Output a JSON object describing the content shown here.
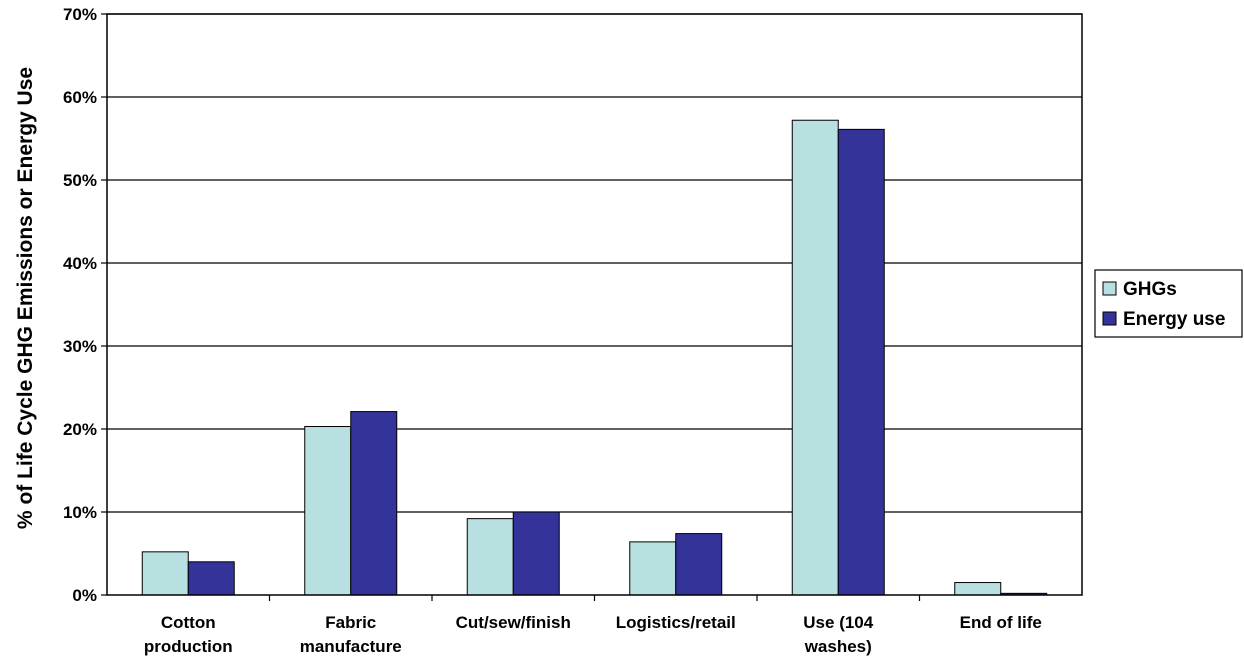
{
  "chart_data": {
    "type": "bar",
    "ylabel": "% of Life Cycle GHG Emissions or Energy Use",
    "xlabel": "",
    "ylim": [
      0,
      70
    ],
    "y_ticks": [
      "0%",
      "10%",
      "20%",
      "30%",
      "40%",
      "50%",
      "60%",
      "70%"
    ],
    "y_tick_values": [
      0,
      10,
      20,
      30,
      40,
      50,
      60,
      70
    ],
    "grid": true,
    "legend_position": "right",
    "categories": [
      [
        "Cotton",
        "production"
      ],
      [
        "Fabric",
        "manufacture"
      ],
      [
        "Cut/sew/finish"
      ],
      [
        "Logistics/retail"
      ],
      [
        "Use (104",
        "washes)"
      ],
      [
        "End of life"
      ]
    ],
    "series": [
      {
        "name": "GHGs",
        "color": "#b8e0e0",
        "values": [
          5.2,
          20.3,
          9.2,
          6.4,
          57.2,
          1.5
        ]
      },
      {
        "name": "Energy use",
        "color": "#333399",
        "values": [
          4.0,
          22.1,
          10.0,
          7.4,
          56.1,
          0.2
        ]
      }
    ]
  }
}
